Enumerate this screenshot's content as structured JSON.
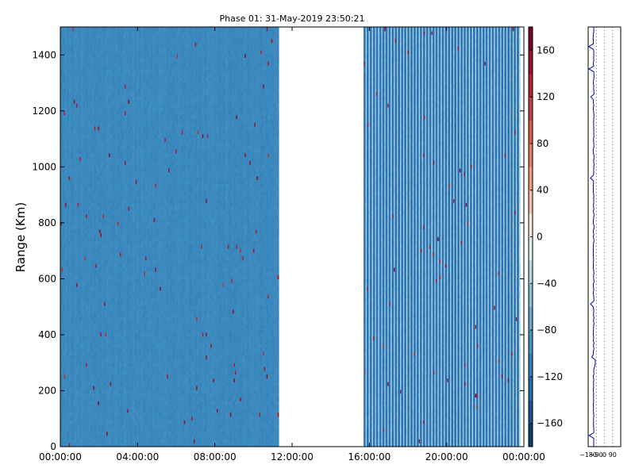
{
  "chart_data": {
    "type": "heatmap",
    "title": "Phase 01: 31-May-2019 23:50:21",
    "ylabel": "Range (Km)",
    "xlabel": "",
    "x_ticks": [
      "00:00:00",
      "04:00:00",
      "08:00:00",
      "12:00:00",
      "16:00:00",
      "20:00:00",
      "00:00:00"
    ],
    "x_range_hours": [
      0,
      24
    ],
    "y_ticks": [
      0,
      200,
      400,
      600,
      800,
      1000,
      1200,
      1400
    ],
    "ylim": [
      0,
      1500
    ],
    "data_coverage_hours": [
      [
        0,
        11.3
      ],
      [
        15.7,
        23.8
      ]
    ],
    "segments": [
      {
        "start_hour": 0.0,
        "end_hour": 11.3,
        "typical_phase": -100,
        "style": "uniform"
      },
      {
        "start_hour": 15.7,
        "end_hour": 23.8,
        "typical_phase": -120,
        "style": "striped"
      }
    ],
    "colorbar": {
      "colormap": "RdBu_r",
      "range": [
        -180,
        180
      ],
      "ticks": [
        -160,
        -120,
        -80,
        -40,
        0,
        40,
        80,
        120,
        160
      ]
    },
    "side_profile": {
      "x_ticks": [
        -180,
        -90,
        0,
        90
      ],
      "x_tick_labels": [
        "−180",
        "−90",
        "0",
        "90"
      ],
      "xlim": [
        -180,
        180
      ],
      "grid": "dotted vertical",
      "line_color": "#0000cc",
      "approx_phase": -120
    }
  }
}
